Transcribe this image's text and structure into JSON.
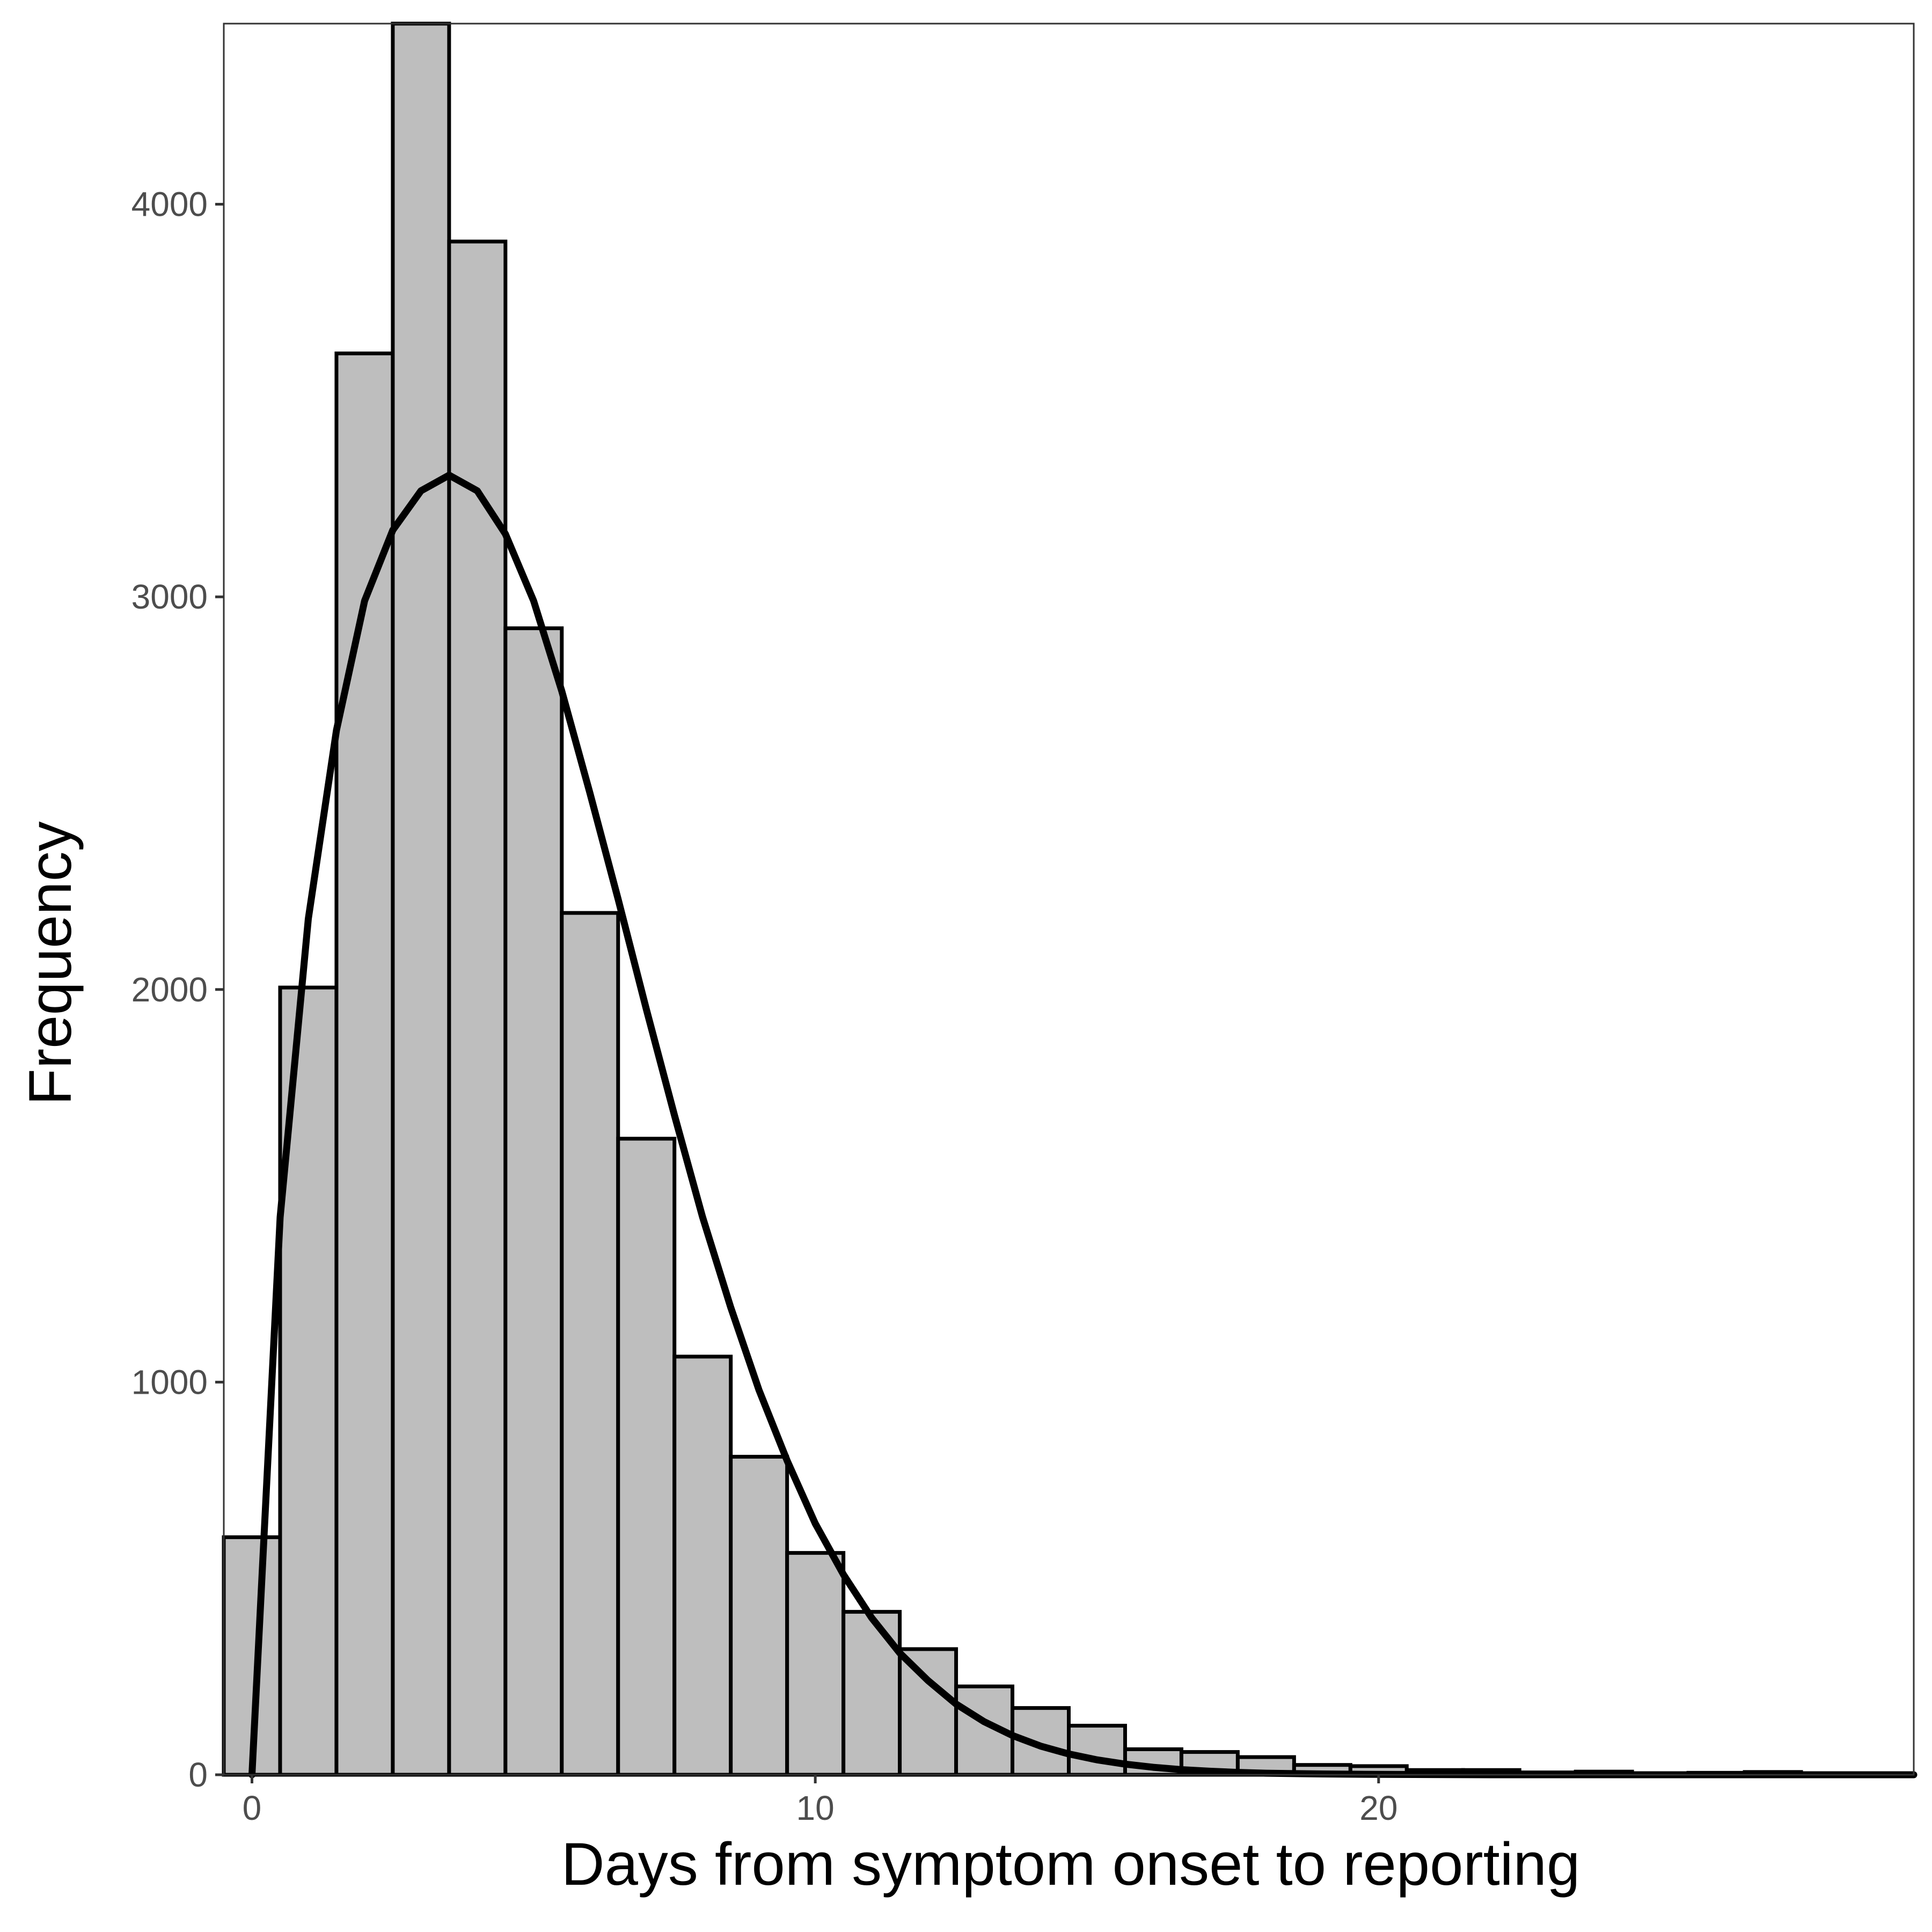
{
  "chart_data": {
    "type": "bar",
    "title": "",
    "xlabel": "Days from symptom onset to reporting",
    "ylabel": "Frequency",
    "xlim": [
      -0.5,
      29.5
    ],
    "ylim": [
      0,
      4460
    ],
    "x_ticks": [
      0,
      10,
      20
    ],
    "y_ticks": [
      0,
      1000,
      2000,
      3000,
      4000
    ],
    "grid": false,
    "bar_fill": "#bebebe",
    "bar_stroke": "#000000",
    "bin_width": 1,
    "bins": [
      {
        "x": 0,
        "count": 605
      },
      {
        "x": 1,
        "count": 2005
      },
      {
        "x": 2,
        "count": 3620
      },
      {
        "x": 3,
        "count": 4460
      },
      {
        "x": 4,
        "count": 3905
      },
      {
        "x": 5,
        "count": 2920
      },
      {
        "x": 6,
        "count": 2195
      },
      {
        "x": 7,
        "count": 1620
      },
      {
        "x": 8,
        "count": 1065
      },
      {
        "x": 9,
        "count": 810
      },
      {
        "x": 10,
        "count": 565
      },
      {
        "x": 11,
        "count": 415
      },
      {
        "x": 12,
        "count": 320
      },
      {
        "x": 13,
        "count": 225
      },
      {
        "x": 14,
        "count": 170
      },
      {
        "x": 15,
        "count": 125
      },
      {
        "x": 16,
        "count": 65
      },
      {
        "x": 17,
        "count": 58
      },
      {
        "x": 18,
        "count": 45
      },
      {
        "x": 19,
        "count": 25
      },
      {
        "x": 20,
        "count": 22
      },
      {
        "x": 21,
        "count": 12
      },
      {
        "x": 22,
        "count": 12
      },
      {
        "x": 23,
        "count": 6
      },
      {
        "x": 24,
        "count": 8
      },
      {
        "x": 25,
        "count": 3
      },
      {
        "x": 26,
        "count": 5
      },
      {
        "x": 27,
        "count": 7
      },
      {
        "x": 28,
        "count": 2
      }
    ],
    "fit_curve": {
      "stroke": "#000000",
      "points": [
        [
          0.0,
          0
        ],
        [
          0.5,
          1420
        ],
        [
          1.0,
          2180
        ],
        [
          1.5,
          2660
        ],
        [
          2.0,
          2990
        ],
        [
          2.5,
          3170
        ],
        [
          3.0,
          3270
        ],
        [
          3.5,
          3310
        ],
        [
          4.0,
          3270
        ],
        [
          4.5,
          3160
        ],
        [
          5.0,
          2990
        ],
        [
          5.5,
          2760
        ],
        [
          6.0,
          2500
        ],
        [
          6.5,
          2230
        ],
        [
          7.0,
          1950
        ],
        [
          7.5,
          1680
        ],
        [
          8.0,
          1420
        ],
        [
          8.5,
          1190
        ],
        [
          9.0,
          980
        ],
        [
          9.5,
          800
        ],
        [
          10.0,
          640
        ],
        [
          10.5,
          510
        ],
        [
          11.0,
          400
        ],
        [
          11.5,
          310
        ],
        [
          12.0,
          240
        ],
        [
          12.5,
          180
        ],
        [
          13.0,
          135
        ],
        [
          13.5,
          100
        ],
        [
          14.0,
          73
        ],
        [
          14.5,
          53
        ],
        [
          15.0,
          38
        ],
        [
          15.5,
          27
        ],
        [
          16.0,
          19
        ],
        [
          16.5,
          13
        ],
        [
          17.0,
          9
        ],
        [
          17.5,
          6
        ],
        [
          18.0,
          4
        ],
        [
          19.0,
          2
        ],
        [
          20.0,
          1
        ],
        [
          22.0,
          0
        ],
        [
          25.0,
          0
        ],
        [
          29.5,
          0
        ]
      ]
    }
  }
}
